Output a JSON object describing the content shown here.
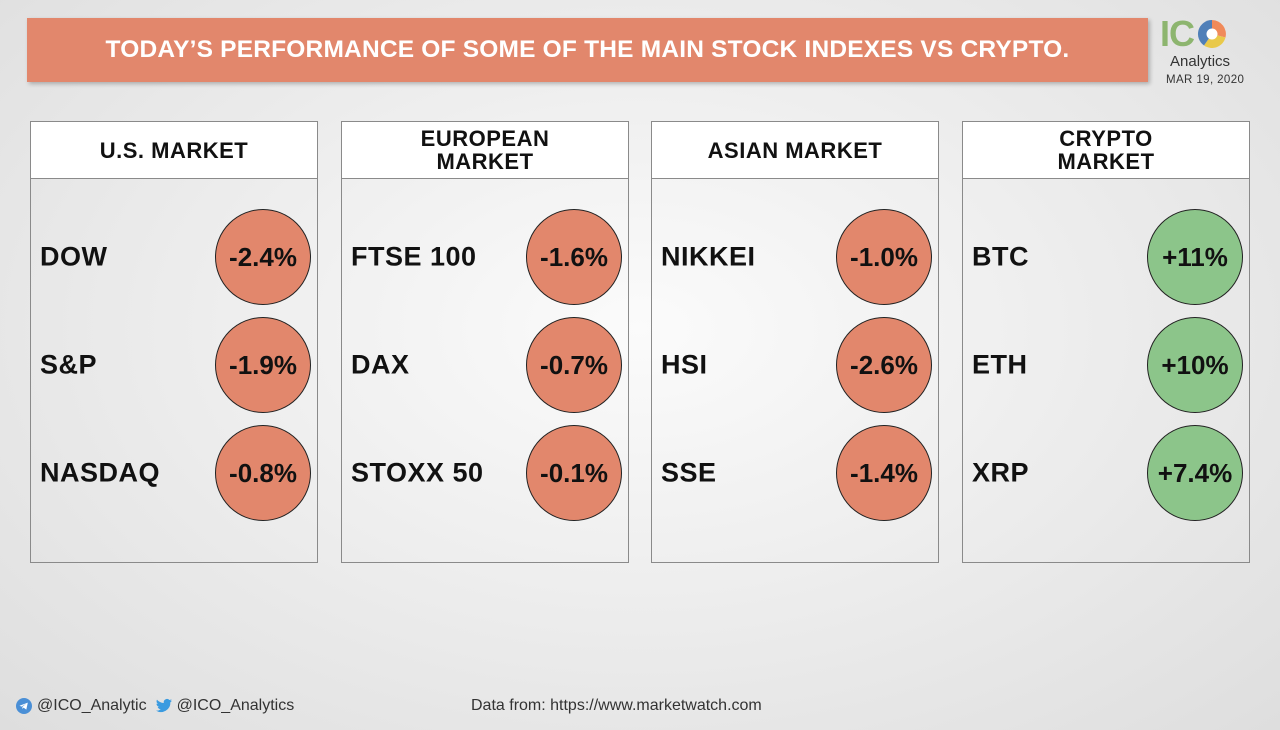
{
  "title": "TODAY’S PERFORMANCE OF SOME OF THE MAIN STOCK INDEXES VS CRYPTO.",
  "logo": {
    "mark_ic": "IC",
    "mark_o": "O",
    "sub": "Analytics",
    "date": "MAR 19, 2020"
  },
  "colors": {
    "banner": "#e2876c",
    "negative": "#e2876c",
    "positive": "#8cc58a"
  },
  "markets": [
    {
      "title": "U.S. MARKET",
      "rows": [
        {
          "name": "DOW",
          "change": "-2.4%",
          "direction": "down"
        },
        {
          "name": "S&P",
          "change": "-1.9%",
          "direction": "down"
        },
        {
          "name": "NASDAQ",
          "change": "-0.8%",
          "direction": "down"
        }
      ]
    },
    {
      "title": "EUROPEAN MARKET",
      "rows": [
        {
          "name": "FTSE 100",
          "change": "-1.6%",
          "direction": "down"
        },
        {
          "name": "DAX",
          "change": "-0.7%",
          "direction": "down"
        },
        {
          "name": "STOXX 50",
          "change": "-0.1%",
          "direction": "down"
        }
      ]
    },
    {
      "title": "ASIAN MARKET",
      "rows": [
        {
          "name": "NIKKEI",
          "change": "-1.0%",
          "direction": "down"
        },
        {
          "name": "HSI",
          "change": "-2.6%",
          "direction": "down"
        },
        {
          "name": "SSE",
          "change": "-1.4%",
          "direction": "down"
        }
      ]
    },
    {
      "title": "CRYPTO MARKET",
      "rows": [
        {
          "name": "BTC",
          "change": "+11%",
          "direction": "up"
        },
        {
          "name": "ETH",
          "change": "+10%",
          "direction": "up"
        },
        {
          "name": "XRP",
          "change": "+7.4%",
          "direction": "up"
        }
      ]
    }
  ],
  "footer": {
    "telegram": "@ICO_Analytic",
    "twitter": "@ICO_Analytics",
    "source": "Data from: https://www.marketwatch.com",
    "icons": [
      "telegram-icon",
      "twitter-icon"
    ]
  }
}
